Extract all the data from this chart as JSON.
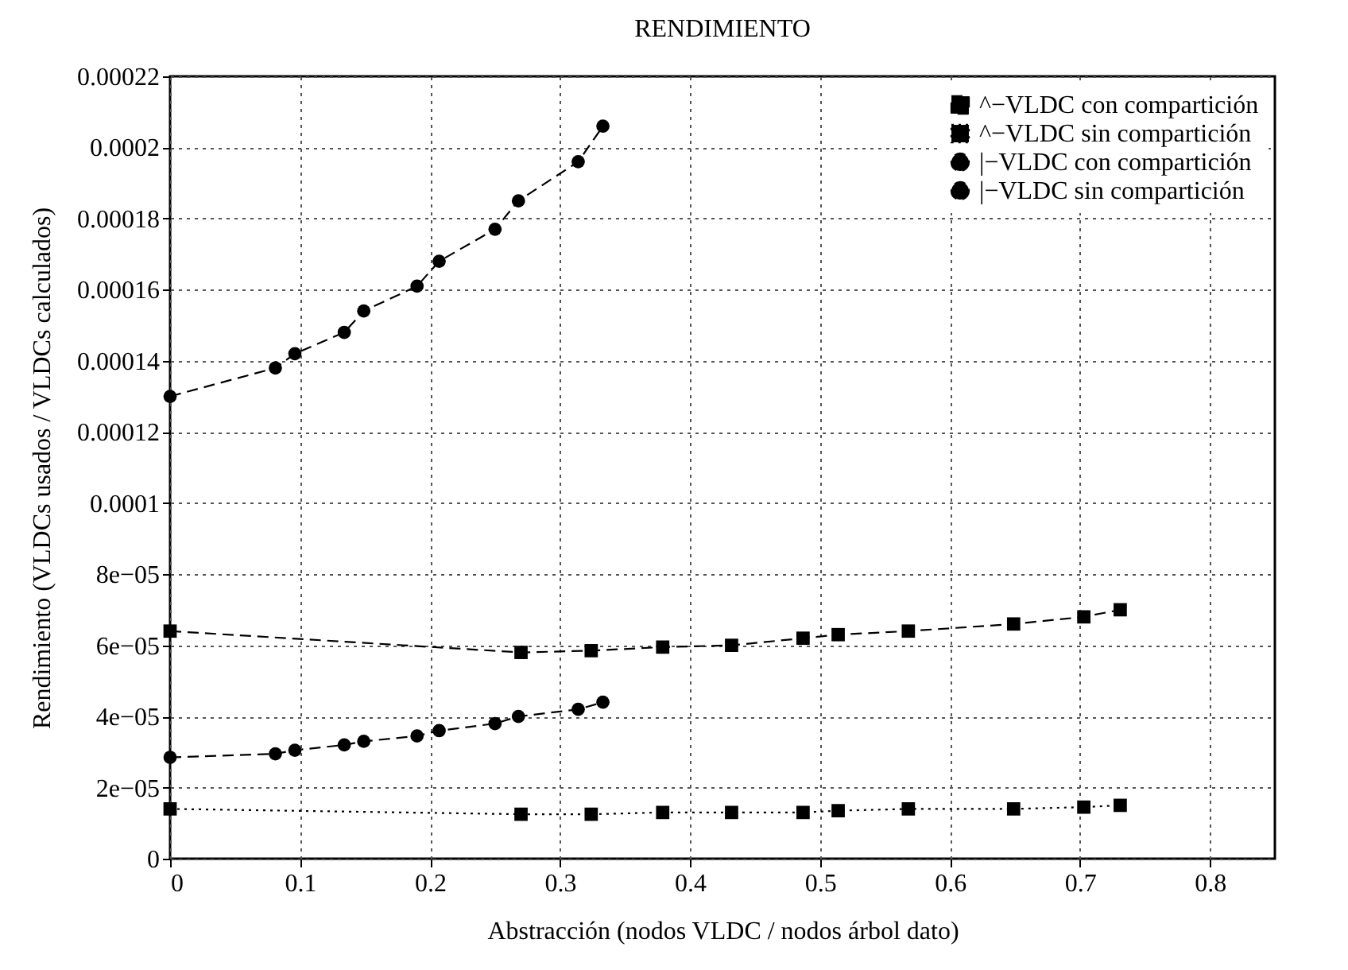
{
  "chart_data": {
    "type": "line",
    "title": "RENDIMIENTO",
    "xlabel": "Abstracción (nodos VLDC / nodos árbol dato)",
    "ylabel": "Rendimiento (VLDCs usados / VLDCs calculados)",
    "xlim": [
      0,
      0.85
    ],
    "xticks": [
      0,
      0.1,
      0.2,
      0.3,
      0.4,
      0.5,
      0.6,
      0.7,
      0.8
    ],
    "ylim": [
      0,
      0.00022
    ],
    "yticks": [
      0,
      {
        "value": 2e-05,
        "label": "2e−05"
      },
      {
        "value": 4e-05,
        "label": "4e−05"
      },
      {
        "value": 6e-05,
        "label": "6e−05"
      },
      {
        "value": 8e-05,
        "label": "8e−05"
      },
      0.0001,
      0.00012,
      0.00014,
      0.00016,
      0.00018,
      0.0002,
      0.00022
    ],
    "grid": true,
    "legend": "top right",
    "series": [
      {
        "name": "^−VLDC con compartición",
        "color": "#000000",
        "marker": "square",
        "line_style": "dashed",
        "x": [
          0,
          0.27,
          0.324,
          0.379,
          0.432,
          0.487,
          0.514,
          0.568,
          0.649,
          0.703,
          0.731
        ],
        "values": [
          6.4e-05,
          5.8e-05,
          5.85e-05,
          5.95e-05,
          6e-05,
          6.2e-05,
          6.3e-05,
          6.4e-05,
          6.6e-05,
          6.8e-05,
          7e-05
        ]
      },
      {
        "name": "^−VLDC sin compartición",
        "color": "#000000",
        "marker": "square",
        "line_style": "dotted",
        "x": [
          0,
          0.27,
          0.324,
          0.379,
          0.432,
          0.487,
          0.514,
          0.568,
          0.649,
          0.703,
          0.731
        ],
        "values": [
          1.4e-05,
          1.25e-05,
          1.25e-05,
          1.3e-05,
          1.3e-05,
          1.3e-05,
          1.35e-05,
          1.4e-05,
          1.4e-05,
          1.45e-05,
          1.5e-05
        ]
      },
      {
        "name": "|−VLDC con compartición",
        "color": "#000000",
        "marker": "circle",
        "line_style": "dashed",
        "x": [
          0,
          0.081,
          0.096,
          0.134,
          0.149,
          0.19,
          0.207,
          0.25,
          0.268,
          0.314,
          0.333
        ],
        "values": [
          0.00013,
          0.000138,
          0.000142,
          0.000148,
          0.000154,
          0.000161,
          0.000168,
          0.000177,
          0.000185,
          0.000196,
          0.000206
        ]
      },
      {
        "name": "|−VLDC sin compartición",
        "color": "#000000",
        "marker": "circle",
        "line_style": "dashed",
        "x": [
          0,
          0.081,
          0.096,
          0.134,
          0.149,
          0.19,
          0.207,
          0.25,
          0.268,
          0.314,
          0.333
        ],
        "values": [
          2.85e-05,
          2.95e-05,
          3.05e-05,
          3.2e-05,
          3.3e-05,
          3.45e-05,
          3.6e-05,
          3.8e-05,
          4e-05,
          4.2e-05,
          4.4e-05
        ]
      }
    ]
  }
}
